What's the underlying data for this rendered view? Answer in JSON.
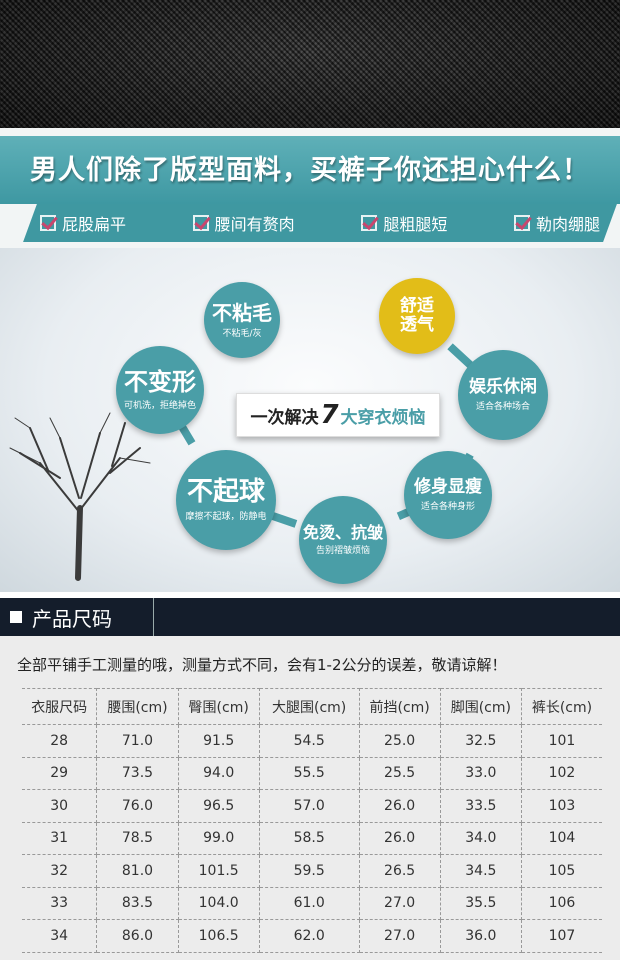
{
  "banner": {
    "title": "男人们除了版型面料，买裤子你还担心什么！",
    "checks": [
      "屁股扁平",
      "腰间有赘肉",
      "腿粗腿短",
      "勒肉绷腿"
    ]
  },
  "features": {
    "center": {
      "pre": "一次解决",
      "num": "7",
      "post": "大穿衣烦恼"
    },
    "items": [
      {
        "main": "不粘毛",
        "sub": "不粘毛/灰"
      },
      {
        "main": "不变形",
        "sub": "可机洗，拒绝掉色"
      },
      {
        "main": "不起球",
        "sub": "摩擦不起球，防静电"
      },
      {
        "main": "免烫、抗皱",
        "sub": "告别褶皱烦恼"
      },
      {
        "main": "修身显瘦",
        "sub": "适合各种身形"
      },
      {
        "main": "娱乐休闲",
        "sub": "适合各种场合"
      },
      {
        "main": "舒适透气",
        "sub": ""
      }
    ],
    "colors": {
      "teal": "#4a9ea7",
      "yellow": "#e2bd18"
    }
  },
  "section": {
    "title": "产品尺码"
  },
  "size_table": {
    "note": "全部平铺手工测量的哦，测量方式不同，会有1-2公分的误差，敬请谅解！",
    "headers": [
      "衣服尺码",
      "腰围(cm)",
      "臀围(cm)",
      "大腿围(cm)",
      "前挡(cm)",
      "脚围(cm)",
      "裤长(cm)"
    ],
    "rows": [
      [
        "28",
        "71.0",
        "91.5",
        "54.5",
        "25.0",
        "32.5",
        "101"
      ],
      [
        "29",
        "73.5",
        "94.0",
        "55.5",
        "25.5",
        "33.0",
        "102"
      ],
      [
        "30",
        "76.0",
        "96.5",
        "57.0",
        "26.0",
        "33.5",
        "103"
      ],
      [
        "31",
        "78.5",
        "99.0",
        "58.5",
        "26.0",
        "34.0",
        "104"
      ],
      [
        "32",
        "81.0",
        "101.5",
        "59.5",
        "26.5",
        "34.5",
        "105"
      ],
      [
        "33",
        "83.5",
        "104.0",
        "61.0",
        "27.0",
        "35.5",
        "106"
      ],
      [
        "34",
        "86.0",
        "106.5",
        "62.0",
        "27.0",
        "36.0",
        "107"
      ]
    ]
  }
}
